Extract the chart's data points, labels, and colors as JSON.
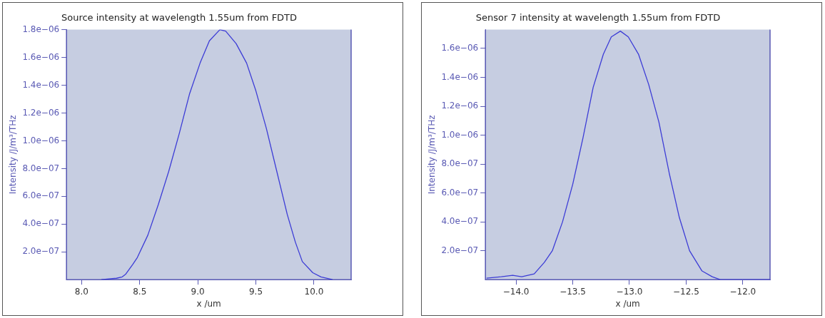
{
  "chart_data": [
    {
      "type": "line",
      "title": "Source intensity at wavelength 1.55um from FDTD",
      "xlabel": "x /um",
      "ylabel": "Intensity /J/m³/THz",
      "x": [
        8.17,
        8.3,
        8.35,
        8.38,
        8.44,
        8.48,
        8.57,
        8.66,
        8.75,
        8.84,
        8.93,
        9.02,
        9.1,
        9.19,
        9.24,
        9.33,
        9.42,
        9.5,
        9.59,
        9.68,
        9.77,
        9.84,
        9.9,
        9.99,
        10.06,
        10.16
      ],
      "series": [
        {
          "color": "#3c3cd6",
          "values": [
            0,
            1e-08,
            2e-08,
            4e-08,
            1.1e-07,
            1.6e-07,
            3.2e-07,
            5.4e-07,
            7.8e-07,
            1.05e-06,
            1.34e-06,
            1.56e-06,
            1.72e-06,
            1.8e-06,
            1.79e-06,
            1.7e-06,
            1.56e-06,
            1.36e-06,
            1.09e-06,
            7.8e-07,
            4.7e-07,
            2.7e-07,
            1.3e-07,
            5e-08,
            2e-08,
            0
          ]
        }
      ],
      "xlim": [
        7.87,
        10.32
      ],
      "xticks": [
        {
          "value": 8,
          "label": "8.0"
        },
        {
          "value": 8.5,
          "label": "8.5"
        },
        {
          "value": 9,
          "label": "9.0"
        },
        {
          "value": 9.5,
          "label": "9.5"
        },
        {
          "value": 10,
          "label": "10.0"
        }
      ],
      "ylim": [
        0,
        1.8e-06
      ],
      "yticks": [
        {
          "value": 2e-07,
          "label": "2.0e−07"
        },
        {
          "value": 4e-07,
          "label": "4.0e−07"
        },
        {
          "value": 6e-07,
          "label": "6.0e−07"
        },
        {
          "value": 8e-07,
          "label": "8.0e−07"
        },
        {
          "value": 1e-06,
          "label": "1.0e−06"
        },
        {
          "value": 1.2e-06,
          "label": "1.2e−06"
        },
        {
          "value": 1.4e-06,
          "label": "1.4e−06"
        },
        {
          "value": 1.6e-06,
          "label": "1.6e−06"
        },
        {
          "value": 1.8e-06,
          "label": "1.8e−06"
        }
      ],
      "grid": false,
      "legend": false,
      "marker": "none",
      "line_style": "solid"
    },
    {
      "type": "line",
      "title": "Sensor 7 intensity at wavelength 1.55um from FDTD",
      "xlabel": "x /um",
      "ylabel": "Intensity /J/m³/THz",
      "x": [
        -14.26,
        -14.13,
        -14.03,
        -13.95,
        -13.84,
        -13.75,
        -13.68,
        -13.59,
        -13.5,
        -13.41,
        -13.32,
        -13.23,
        -13.16,
        -13.08,
        -13.01,
        -12.92,
        -12.83,
        -12.74,
        -12.65,
        -12.56,
        -12.47,
        -12.36,
        -12.27,
        -12.2,
        -11.76
      ],
      "series": [
        {
          "color": "#3c3cd6",
          "values": [
            1e-08,
            2e-08,
            3e-08,
            2e-08,
            4e-08,
            1.2e-07,
            2e-07,
            4e-07,
            6.6e-07,
            9.8e-07,
            1.33e-06,
            1.56e-06,
            1.68e-06,
            1.72e-06,
            1.68e-06,
            1.56e-06,
            1.35e-06,
            1.09e-06,
            7.4e-07,
            4.3e-07,
            2e-07,
            6e-08,
            2e-08,
            0,
            0
          ]
        }
      ],
      "xlim": [
        -14.27,
        -11.76
      ],
      "xticks": [
        {
          "value": -14,
          "label": "−14.0"
        },
        {
          "value": -13.5,
          "label": "−13.5"
        },
        {
          "value": -13,
          "label": "−13.0"
        },
        {
          "value": -12.5,
          "label": "−12.5"
        },
        {
          "value": -12,
          "label": "−12.0"
        }
      ],
      "ylim": [
        0,
        1.73e-06
      ],
      "yticks": [
        {
          "value": 2e-07,
          "label": "2.0e−07"
        },
        {
          "value": 4e-07,
          "label": "4.0e−07"
        },
        {
          "value": 6e-07,
          "label": "6.0e−07"
        },
        {
          "value": 8e-07,
          "label": "8.0e−07"
        },
        {
          "value": 1e-06,
          "label": "1.0e−06"
        },
        {
          "value": 1.2e-06,
          "label": "1.2e−06"
        },
        {
          "value": 1.4e-06,
          "label": "1.4e−06"
        },
        {
          "value": 1.6e-06,
          "label": "1.6e−06"
        }
      ],
      "grid": false,
      "legend": false,
      "marker": "none",
      "line_style": "solid"
    }
  ]
}
